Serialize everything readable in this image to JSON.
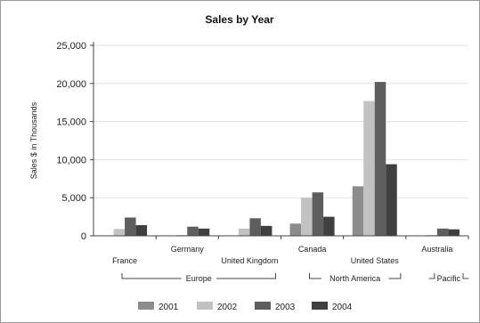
{
  "chart_data": {
    "type": "bar",
    "title": "Sales by Year",
    "ylabel": "Sales $ in Thousands",
    "xlabel": "",
    "ylim": [
      0,
      25000
    ],
    "yticks": [
      "0",
      "5,000",
      "10,000",
      "15,000",
      "20,000",
      "25,000"
    ],
    "ytick_values": [
      0,
      5000,
      10000,
      15000,
      20000,
      25000
    ],
    "grid": true,
    "legend_position": "bottom",
    "categories": [
      "France",
      "Germany",
      "United Kingdom",
      "Canada",
      "United States",
      "Australia"
    ],
    "groups": [
      {
        "label": "Europe",
        "categories": [
          "France",
          "Germany",
          "United Kingdom"
        ]
      },
      {
        "label": "North America",
        "categories": [
          "Canada",
          "United States"
        ]
      },
      {
        "label": "Pacific",
        "categories": [
          "Australia"
        ]
      }
    ],
    "series": [
      {
        "name": "2001",
        "color": "#8c8c8c",
        "values": [
          0,
          0,
          0,
          1600,
          6500,
          0
        ]
      },
      {
        "name": "2002",
        "color": "#c2c2c2",
        "values": [
          900,
          100,
          950,
          5000,
          17700,
          100
        ]
      },
      {
        "name": "2003",
        "color": "#5e5e5e",
        "values": [
          2400,
          1200,
          2300,
          5700,
          20200,
          950
        ]
      },
      {
        "name": "2004",
        "color": "#3f3f3f",
        "values": [
          1400,
          950,
          1300,
          2500,
          9400,
          850
        ]
      }
    ]
  }
}
